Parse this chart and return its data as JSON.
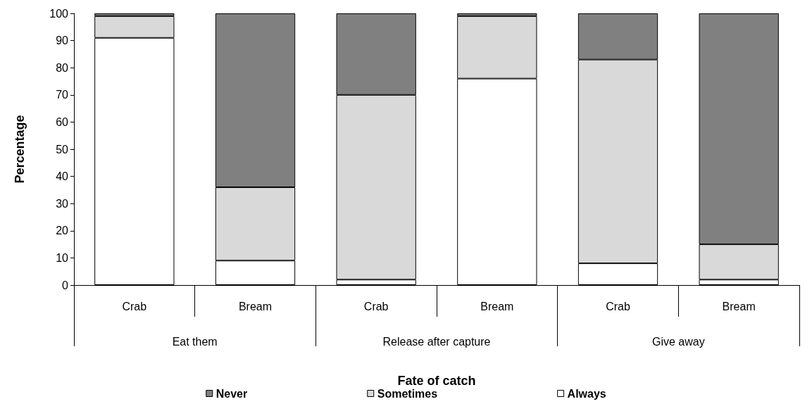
{
  "chart_data": {
    "type": "bar",
    "stacked": true,
    "xlabel": "Fate of catch",
    "ylabel": "Percentage",
    "categories": [
      "Crab",
      "Bream",
      "Crab",
      "Bream",
      "Crab",
      "Bream"
    ],
    "annotations": [
      "Eat them",
      "Release after capture",
      "Give away"
    ],
    "series": [
      {
        "name": "Always",
        "color": "#ffffff",
        "values": [
          91,
          9,
          2,
          76,
          8,
          2
        ]
      },
      {
        "name": "Sometimes",
        "color": "#d9d9d9",
        "values": [
          8,
          27,
          68,
          23,
          75,
          13
        ]
      },
      {
        "name": "Never",
        "color": "#808080",
        "values": [
          1,
          64,
          30,
          1,
          17,
          85
        ]
      }
    ],
    "ylim": [
      0,
      100
    ],
    "yticks": [
      0,
      10,
      20,
      30,
      40,
      50,
      60,
      70,
      80,
      90,
      100
    ],
    "grid": false,
    "legend": "bottom"
  }
}
